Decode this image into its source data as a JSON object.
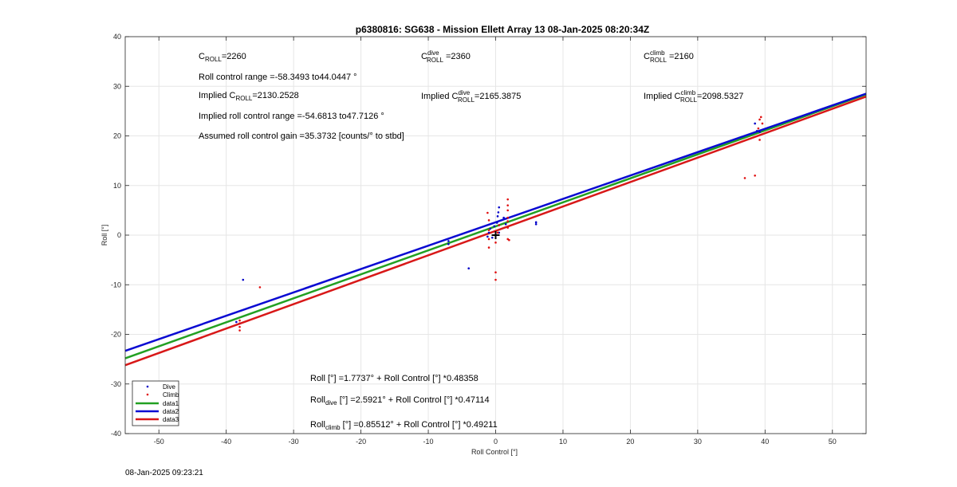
{
  "chart_data": {
    "type": "scatter",
    "title": "p6380816: SG638 - Mission Ellett Array 13 08-Jan-2025 08:20:34Z",
    "xlabel": "Roll Control [°]",
    "ylabel": "Roll [°]",
    "xlim": [
      -55,
      55
    ],
    "ylim": [
      -40,
      40
    ],
    "xticks": [
      -50,
      -40,
      -30,
      -20,
      -10,
      0,
      10,
      20,
      30,
      40,
      50
    ],
    "yticks": [
      -40,
      -30,
      -20,
      -10,
      0,
      10,
      20,
      30,
      40
    ],
    "grid": true,
    "legend_position": "bottom-left",
    "colors": {
      "dive": "#0000c8",
      "climb": "#e01010",
      "data1": "#22a022",
      "data2": "#0a0ad2",
      "data3": "#d81818"
    },
    "series": [
      {
        "name": "Dive",
        "kind": "points",
        "color": "#0000c8",
        "points": [
          [
            -38.5,
            -17.5
          ],
          [
            -38,
            -17.8
          ],
          [
            -37.5,
            -9
          ],
          [
            -7,
            -1.2
          ],
          [
            -7,
            -1.8
          ],
          [
            -4,
            -6.7
          ],
          [
            -1.2,
            -0.3
          ],
          [
            -1,
            0.5
          ],
          [
            -0.8,
            1.3
          ],
          [
            -0.5,
            -0.5
          ],
          [
            -0.2,
            1.8
          ],
          [
            0.2,
            2.5
          ],
          [
            0.3,
            3.8
          ],
          [
            0.4,
            4.6
          ],
          [
            0.5,
            5.6
          ],
          [
            0.5,
            2
          ],
          [
            0.5,
            0.5
          ],
          [
            1.2,
            3.5
          ],
          [
            1.5,
            2.2
          ],
          [
            6,
            2.2
          ],
          [
            6,
            2.6
          ],
          [
            38.5,
            22.5
          ],
          [
            38.8,
            21
          ],
          [
            39.2,
            20.8
          ]
        ]
      },
      {
        "name": "Climb",
        "kind": "points",
        "color": "#e01010",
        "points": [
          [
            -38,
            -17.2
          ],
          [
            -38,
            -17.8
          ],
          [
            -38,
            -18.5
          ],
          [
            -38,
            -19.2
          ],
          [
            -35,
            -10.5
          ],
          [
            -1.2,
            4.5
          ],
          [
            -1,
            3
          ],
          [
            -1,
            1
          ],
          [
            -1,
            -0.8
          ],
          [
            -1,
            -2.5
          ],
          [
            0,
            -1.5
          ],
          [
            0,
            -7.5
          ],
          [
            0,
            -9
          ],
          [
            0.3,
            0.5
          ],
          [
            0.5,
            2
          ],
          [
            1.8,
            7.2
          ],
          [
            1.8,
            6
          ],
          [
            1.8,
            5
          ],
          [
            1.8,
            3.5
          ],
          [
            1.8,
            2.8
          ],
          [
            1.8,
            1.5
          ],
          [
            1.8,
            -0.8
          ],
          [
            2,
            -1
          ],
          [
            37,
            11.5
          ],
          [
            38.5,
            12
          ],
          [
            39,
            21.5
          ],
          [
            39.2,
            23.3
          ],
          [
            39.4,
            23.8
          ],
          [
            39.6,
            22.5
          ],
          [
            39.2,
            19.2
          ]
        ]
      },
      {
        "name": "data1",
        "kind": "line",
        "color": "#22a022",
        "intercept": 1.7737,
        "slope": 0.48358
      },
      {
        "name": "data2",
        "kind": "line",
        "color": "#0a0ad2",
        "intercept": 2.5921,
        "slope": 0.47114
      },
      {
        "name": "data3",
        "kind": "line",
        "color": "#d81818",
        "intercept": 0.85512,
        "slope": 0.49211
      }
    ],
    "marker": {
      "x": 0,
      "y": 0,
      "symbol": "+"
    },
    "legend": [
      "Dive",
      "Climb",
      "data1",
      "data2",
      "data3"
    ]
  },
  "annotations": {
    "c_roll": {
      "main": "C",
      "sub": "ROLL",
      "rest": "=2260"
    },
    "roll_range": "Roll control range =-58.3493 to44.0447 °",
    "implied_c_roll": {
      "pre": "Implied C",
      "sub": "ROLL",
      "rest": "=2130.2528"
    },
    "implied_range": "Implied roll control range =-54.6813 to47.7126 °",
    "gain": "Assumed roll control gain =35.3732 [counts/° to stbd]",
    "c_roll_dive": {
      "main": "C",
      "sup": "dive",
      "sub": "ROLL",
      "rest": " =2360"
    },
    "implied_dive": {
      "pre": "Implied C",
      "sup": "dive",
      "sub": "ROLL",
      "rest": "=2165.3875"
    },
    "c_roll_climb": {
      "main": "C",
      "sup": "climb",
      "sub": "ROLL",
      "rest": " =2160"
    },
    "implied_climb": {
      "pre": "Implied C",
      "sup": "climb",
      "sub": "ROLL",
      "rest": "=2098.5327"
    },
    "eq_all": "Roll [°] =1.7737° + Roll Control [°] *0.48358",
    "eq_dive": {
      "pre": "Roll",
      "sub": "dive",
      "rest": " [°] =2.5921° + Roll Control [°] *0.47114"
    },
    "eq_climb": {
      "pre": "Roll",
      "sub": "climb",
      "rest": " [°] =0.85512° + Roll Control [°] *0.49211"
    }
  },
  "footer": {
    "timestamp": "08-Jan-2025 09:23:21"
  }
}
